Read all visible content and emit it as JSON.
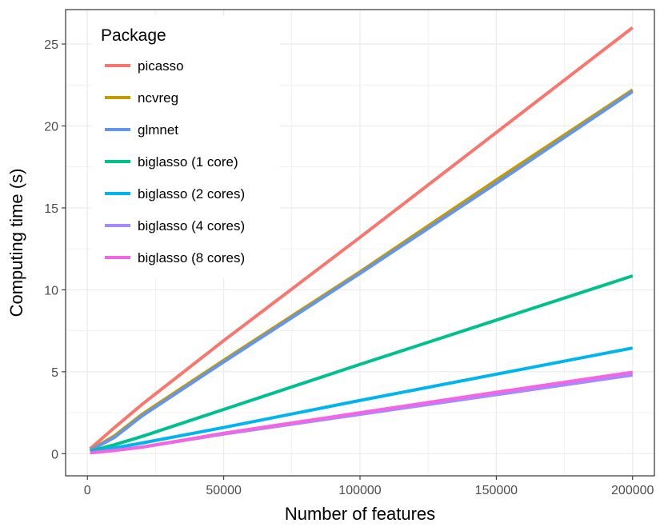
{
  "chart_data": {
    "type": "line",
    "title": "",
    "xlabel": "Number of features",
    "ylabel": "Computing time (s)",
    "xlim": [
      -8000,
      208000
    ],
    "ylim": [
      -1.35,
      27.1
    ],
    "x_ticks": [
      0,
      50000,
      100000,
      150000,
      200000
    ],
    "x_tick_labels": [
      "0",
      "50000",
      "100000",
      "150000",
      "200000"
    ],
    "y_ticks": [
      0,
      5,
      10,
      15,
      20,
      25
    ],
    "y_tick_labels": [
      "0",
      "5",
      "10",
      "15",
      "20",
      "25"
    ],
    "grid": true,
    "legend": {
      "title": "Package",
      "placement": "top-left"
    },
    "x": [
      1000,
      10000,
      20000,
      50000,
      100000,
      150000,
      200000
    ],
    "series": [
      {
        "name": "picasso",
        "color": "#F8766D",
        "values": [
          0.3,
          1.6,
          3.0,
          6.9,
          13.2,
          19.6,
          26.0
        ]
      },
      {
        "name": "ncvreg",
        "color": "#C49A00",
        "values": [
          0.2,
          1.1,
          2.4,
          5.7,
          11.1,
          16.7,
          22.2
        ]
      },
      {
        "name": "glmnet",
        "color": "#6495ED",
        "values": [
          0.2,
          1.0,
          2.3,
          5.6,
          11.0,
          16.5,
          22.1
        ]
      },
      {
        "name": "biglasso (1 core)",
        "color": "#00C08D",
        "values": [
          0.15,
          0.55,
          1.05,
          2.7,
          5.45,
          8.15,
          10.85
        ]
      },
      {
        "name": "biglasso (2 cores)",
        "color": "#00B4EF",
        "values": [
          0.1,
          0.35,
          0.65,
          1.6,
          3.25,
          4.85,
          6.45
        ]
      },
      {
        "name": "biglasso (4 cores)",
        "color": "#A58AFF",
        "values": [
          0.05,
          0.2,
          0.4,
          1.2,
          2.4,
          3.6,
          4.8
        ]
      },
      {
        "name": "biglasso (8 cores)",
        "color": "#F564E3",
        "values": [
          0.05,
          0.2,
          0.4,
          1.25,
          2.5,
          3.75,
          4.97
        ]
      }
    ]
  }
}
